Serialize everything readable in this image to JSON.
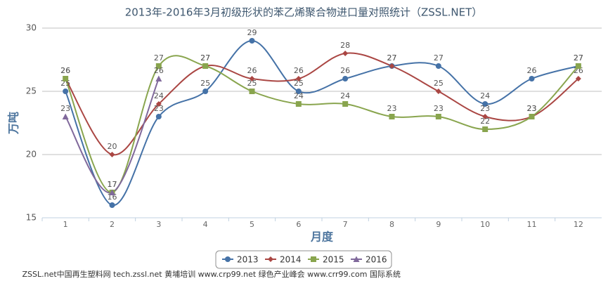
{
  "chart_data": {
    "type": "line",
    "title": "2013年-2016年3月初级形状的苯乙烯聚合物进口量对照统计（ZSSL.NET）",
    "y_label": "万吨",
    "x_label": "月度",
    "categories": [
      "1",
      "2",
      "3",
      "4",
      "5",
      "6",
      "7",
      "8",
      "9",
      "10",
      "11",
      "12"
    ],
    "series": [
      {
        "name": "2013",
        "color": "#4572A7",
        "marker": "circle",
        "values": [
          25,
          16,
          23,
          25,
          29,
          25,
          26,
          27,
          27,
          24,
          26,
          27
        ]
      },
      {
        "name": "2014",
        "color": "#AA4643",
        "marker": "diamond",
        "values": [
          26,
          20,
          24,
          27,
          26,
          26,
          28,
          27,
          25,
          23,
          23,
          26
        ]
      },
      {
        "name": "2015",
        "color": "#89A54E",
        "marker": "square",
        "values": [
          26,
          17,
          27,
          27,
          25,
          24,
          24,
          23,
          23,
          22,
          23,
          27
        ]
      },
      {
        "name": "2016",
        "color": "#80699B",
        "marker": "triangle",
        "values": [
          23,
          17,
          26,
          null,
          null,
          null,
          null,
          null,
          null,
          null,
          null,
          null
        ]
      }
    ],
    "ylim": [
      15,
      30
    ],
    "yticks": [
      15,
      20,
      25,
      30
    ],
    "grid": true,
    "legend": "bottom"
  },
  "footer": "ZSSL.net中国再生塑料网 tech.zssl.net 黄埔培训 www.crp99.net 绿色产业峰会 www.crr99.com 国际系统"
}
